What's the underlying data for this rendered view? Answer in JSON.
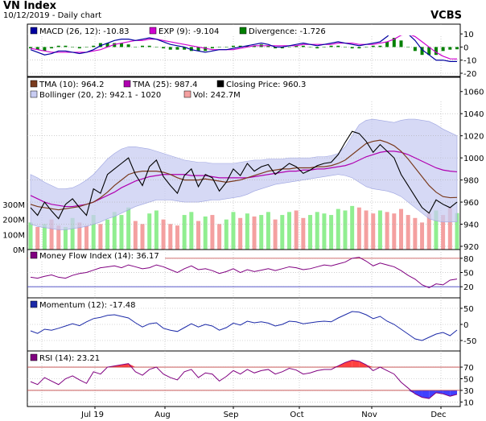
{
  "header": {
    "title": "VN Index",
    "subtitle": "10/12/2019 - Daily chart",
    "brand": "VCBS"
  },
  "colors": {
    "background": "#ffffff",
    "panel_bg": "#ffffff",
    "grid": "#b0b0b0",
    "price": "#000000",
    "tma10": "#7a3b1e",
    "tma25": "#b000b0",
    "bollinger_fill": "#c8ccf2",
    "vol_up": "#90ee90",
    "vol_down": "#f4a0a0",
    "macd": "#0000a0",
    "signal": "#d000d0",
    "divergence": "#008000",
    "mfi": "#800080",
    "momentum": "#1c2aa8",
    "rsi": "#800080",
    "rsi_over": "#ff4040",
    "rsi_under": "#4040ff",
    "refline": "#c04040"
  },
  "chart_data": [
    {
      "type": "line",
      "name": "macd-panel",
      "legend": [
        {
          "label": "MACD (26, 12): -10.83",
          "color": "#0000a0"
        },
        {
          "label": "EXP (9): -9.104",
          "color": "#d000d0"
        },
        {
          "label": "Divergence: -1.726",
          "color": "#008000"
        }
      ],
      "y_ticks": [
        "10",
        "0",
        "-10",
        "-20"
      ],
      "ylim": [
        -20,
        15
      ],
      "series": [
        {
          "values": [
            -2,
            -4,
            -6,
            -5,
            -3,
            -3,
            -4,
            -5,
            -4,
            -2,
            1,
            3,
            5,
            6,
            6,
            5,
            6,
            7,
            6,
            4,
            2,
            1,
            0,
            -2,
            -3,
            -4,
            -3,
            -2,
            -2,
            -1,
            0,
            1,
            2,
            3,
            2,
            0,
            0,
            1,
            2,
            3,
            2,
            1,
            2,
            3,
            4,
            3,
            2,
            1,
            2,
            3,
            4,
            8,
            13,
            14,
            10,
            5,
            -2,
            -6,
            -10,
            -10,
            -11,
            -11
          ]
        },
        {
          "values": [
            -1,
            -2,
            -3,
            -4,
            -4,
            -4,
            -4,
            -4,
            -4,
            -3,
            -2,
            0,
            2,
            3,
            4,
            5,
            5,
            6,
            6,
            5,
            4,
            3,
            2,
            1,
            0,
            -1,
            -2,
            -2,
            -2,
            -2,
            -1,
            0,
            1,
            1,
            1,
            1,
            1,
            1,
            1,
            2,
            2,
            2,
            2,
            2,
            3,
            3,
            3,
            2,
            2,
            2,
            3,
            4,
            6,
            9,
            10,
            8,
            4,
            0,
            -4,
            -7,
            -9,
            -9.1
          ]
        },
        {
          "values": [
            -1,
            -2,
            -3,
            -1,
            1,
            1,
            0,
            -1,
            0,
            1,
            3,
            3,
            3,
            3,
            2,
            0,
            1,
            1,
            0,
            -1,
            -2,
            -2,
            -2,
            -3,
            -3,
            -3,
            -1,
            0,
            0,
            1,
            1,
            1,
            1,
            2,
            1,
            -1,
            -1,
            0,
            1,
            1,
            0,
            -1,
            0,
            1,
            1,
            0,
            -1,
            -1,
            0,
            1,
            1,
            4,
            7,
            5,
            0,
            -3,
            -6,
            -6,
            -6,
            -3,
            -2,
            -1.7
          ]
        }
      ]
    },
    {
      "type": "line",
      "name": "price-panel",
      "legend": [
        {
          "label": "TMA (10): 964.2",
          "color": "#7a3b1e"
        },
        {
          "label": "TMA (25): 987.4",
          "color": "#b000b0"
        },
        {
          "label": "Closing Price: 960.3",
          "color": "#000000"
        },
        {
          "label": "Bollinger (20, 2): 942.1 - 1020",
          "color": "#c8ccf2"
        },
        {
          "label": "Vol: 242.7M",
          "color": "#f4a0a0"
        }
      ],
      "y_ticks": [
        "1060",
        "1040",
        "1020",
        "1000",
        "980",
        "960",
        "940",
        "920"
      ],
      "ylim": [
        920,
        1070
      ],
      "vol_ticks": [
        "300M",
        "200M",
        "100M",
        "0M"
      ],
      "vol_lim": [
        0,
        300
      ],
      "x_labels": [
        "Jul 19",
        "Aug",
        "Sep",
        "Oct",
        "Nov",
        "Dec"
      ],
      "close": [
        955,
        948,
        960,
        952,
        945,
        958,
        963,
        955,
        948,
        972,
        968,
        985,
        990,
        995,
        1000,
        985,
        975,
        992,
        998,
        983,
        975,
        968,
        984,
        990,
        974,
        985,
        982,
        970,
        978,
        990,
        984,
        995,
        988,
        992,
        994,
        985,
        990,
        995,
        992,
        986,
        989,
        993,
        995,
        996,
        1003,
        1014,
        1024,
        1022,
        1015,
        1005,
        1012,
        1006,
        1000,
        985,
        975,
        965,
        955,
        950,
        962,
        958,
        955,
        960
      ],
      "tma10": [
        958,
        956,
        955,
        954,
        953,
        954,
        955,
        956,
        958,
        960,
        964,
        969,
        975,
        980,
        985,
        987,
        988,
        988,
        988,
        987,
        985,
        982,
        980,
        980,
        980,
        981,
        980,
        979,
        978,
        979,
        980,
        982,
        984,
        986,
        988,
        989,
        990,
        990,
        991,
        991,
        991,
        992,
        992,
        993,
        995,
        998,
        1003,
        1008,
        1013,
        1015,
        1016,
        1014,
        1011,
        1006,
        999,
        991,
        983,
        975,
        969,
        965,
        964,
        964.2
      ],
      "tma25": [
        966,
        963,
        960,
        958,
        957,
        956,
        956,
        957,
        958,
        960,
        963,
        966,
        969,
        973,
        976,
        979,
        981,
        983,
        984,
        985,
        985,
        985,
        985,
        984,
        984,
        984,
        983,
        982,
        982,
        982,
        982,
        982,
        983,
        984,
        985,
        986,
        987,
        988,
        988,
        989,
        989,
        990,
        990,
        991,
        992,
        993,
        995,
        998,
        1001,
        1003,
        1005,
        1006,
        1006,
        1005,
        1003,
        1000,
        997,
        994,
        991,
        989,
        988,
        987.4
      ],
      "boll_up": [
        985,
        982,
        978,
        975,
        972,
        972,
        973,
        976,
        980,
        985,
        992,
        999,
        1004,
        1008,
        1010,
        1010,
        1009,
        1008,
        1006,
        1004,
        1002,
        1000,
        998,
        997,
        996,
        996,
        995,
        995,
        995,
        995,
        996,
        997,
        998,
        998,
        999,
        999,
        999,
        1000,
        1000,
        1000,
        1000,
        1001,
        1001,
        1002,
        1004,
        1010,
        1020,
        1030,
        1034,
        1035,
        1034,
        1033,
        1032,
        1034,
        1035,
        1035,
        1034,
        1033,
        1030,
        1026,
        1023,
        1020
      ],
      "boll_lo": [
        940,
        938,
        937,
        936,
        935,
        935,
        936,
        937,
        938,
        940,
        942,
        945,
        947,
        950,
        953,
        956,
        958,
        960,
        962,
        962,
        962,
        961,
        960,
        960,
        960,
        961,
        962,
        962,
        963,
        964,
        965,
        967,
        970,
        972,
        974,
        976,
        977,
        978,
        979,
        980,
        981,
        982,
        983,
        984,
        985,
        984,
        982,
        978,
        974,
        972,
        971,
        970,
        968,
        965,
        960,
        955,
        950,
        945,
        943,
        942,
        942,
        942.1
      ],
      "volume": [
        180,
        150,
        170,
        200,
        160,
        150,
        210,
        180,
        160,
        230,
        170,
        200,
        250,
        230,
        280,
        190,
        170,
        240,
        260,
        200,
        170,
        160,
        230,
        250,
        190,
        220,
        230,
        170,
        200,
        250,
        210,
        240,
        220,
        230,
        250,
        200,
        230,
        250,
        260,
        210,
        230,
        250,
        240,
        230,
        270,
        260,
        290,
        280,
        260,
        240,
        260,
        250,
        240,
        270,
        230,
        210,
        180,
        240,
        260,
        230,
        280,
        242.7
      ]
    },
    {
      "type": "line",
      "name": "mfi-panel",
      "legend": [
        {
          "label": "Money Flow Index (14): 36.17",
          "color": "#800080"
        }
      ],
      "y_ticks": [
        "80",
        "50",
        "20"
      ],
      "ylim": [
        0,
        95
      ],
      "ref_lines": [
        80,
        20
      ],
      "values": [
        40,
        38,
        42,
        45,
        40,
        38,
        44,
        48,
        50,
        55,
        60,
        62,
        64,
        60,
        66,
        62,
        58,
        60,
        66,
        62,
        56,
        50,
        58,
        64,
        56,
        58,
        54,
        48,
        52,
        58,
        50,
        56,
        52,
        55,
        58,
        54,
        58,
        62,
        60,
        56,
        58,
        62,
        66,
        64,
        68,
        72,
        80,
        82,
        74,
        64,
        70,
        66,
        62,
        54,
        44,
        36,
        24,
        18,
        26,
        24,
        34,
        36.17
      ]
    },
    {
      "type": "line",
      "name": "momentum-panel",
      "legend": [
        {
          "label": "Momentum (12): -17.48",
          "color": "#1c2aa8"
        }
      ],
      "y_ticks": [
        "50",
        "0",
        "-50"
      ],
      "ylim": [
        -75,
        75
      ],
      "values": [
        -20,
        -28,
        -15,
        -18,
        -12,
        -5,
        2,
        -4,
        8,
        18,
        22,
        28,
        30,
        25,
        20,
        5,
        -8,
        2,
        5,
        -12,
        -18,
        -22,
        -10,
        2,
        -8,
        0,
        -5,
        -18,
        -10,
        4,
        -2,
        10,
        5,
        8,
        4,
        -5,
        0,
        10,
        8,
        2,
        5,
        8,
        10,
        8,
        20,
        30,
        40,
        38,
        30,
        18,
        25,
        10,
        0,
        -15,
        -30,
        -45,
        -50,
        -40,
        -30,
        -25,
        -35,
        -17.48
      ]
    },
    {
      "type": "line",
      "name": "rsi-panel",
      "legend": [
        {
          "label": "RSI (14): 23.21",
          "color": "#800080"
        }
      ],
      "y_ticks": [
        "70",
        "50",
        "30",
        "10"
      ],
      "ylim": [
        5,
        95
      ],
      "ref_lines": [
        70,
        30
      ],
      "values": [
        45,
        40,
        52,
        46,
        40,
        50,
        55,
        48,
        42,
        62,
        58,
        70,
        72,
        74,
        76,
        62,
        56,
        66,
        70,
        58,
        52,
        48,
        62,
        66,
        52,
        60,
        58,
        46,
        54,
        64,
        58,
        66,
        60,
        64,
        66,
        58,
        62,
        68,
        65,
        58,
        60,
        64,
        66,
        66,
        72,
        78,
        82,
        80,
        74,
        64,
        70,
        64,
        58,
        44,
        34,
        24,
        18,
        16,
        26,
        24,
        20,
        23.21
      ]
    }
  ]
}
